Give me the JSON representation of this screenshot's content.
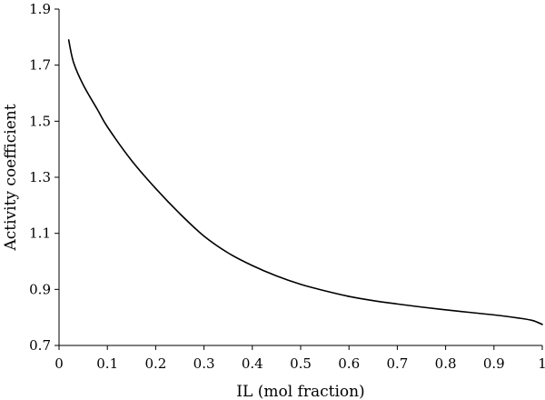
{
  "chart_data": {
    "type": "line",
    "xlabel": "IL (mol fraction)",
    "ylabel": "Activity coefficient",
    "xlim": [
      0,
      1
    ],
    "ylim": [
      0.7,
      1.9
    ],
    "x_ticks": [
      0,
      0.1,
      0.2,
      0.3,
      0.4,
      0.5,
      0.6,
      0.7,
      0.8,
      0.9,
      1
    ],
    "x_tick_labels": [
      "0",
      "0.1",
      "0.2",
      "0.3",
      "0.4",
      "0.5",
      "0.6",
      "0.7",
      "0.8",
      "0.9",
      "1"
    ],
    "y_ticks": [
      0.7,
      0.9,
      1.1,
      1.3,
      1.5,
      1.7,
      1.9
    ],
    "y_tick_labels": [
      "0.7",
      "0.9",
      "1.1",
      "1.3",
      "1.5",
      "1.7",
      "1.9"
    ],
    "grid": false,
    "legend": "none",
    "series": [
      {
        "color": "#000000",
        "x": [
          0.02,
          0.03,
          0.05,
          0.08,
          0.1,
          0.15,
          0.2,
          0.25,
          0.3,
          0.35,
          0.4,
          0.45,
          0.5,
          0.55,
          0.6,
          0.65,
          0.7,
          0.75,
          0.8,
          0.85,
          0.9,
          0.95,
          0.98,
          1.0
        ],
        "y": [
          1.79,
          1.71,
          1.63,
          1.54,
          1.48,
          1.36,
          1.26,
          1.17,
          1.09,
          1.03,
          0.985,
          0.948,
          0.918,
          0.895,
          0.875,
          0.86,
          0.848,
          0.837,
          0.827,
          0.818,
          0.809,
          0.798,
          0.789,
          0.775
        ]
      }
    ]
  }
}
